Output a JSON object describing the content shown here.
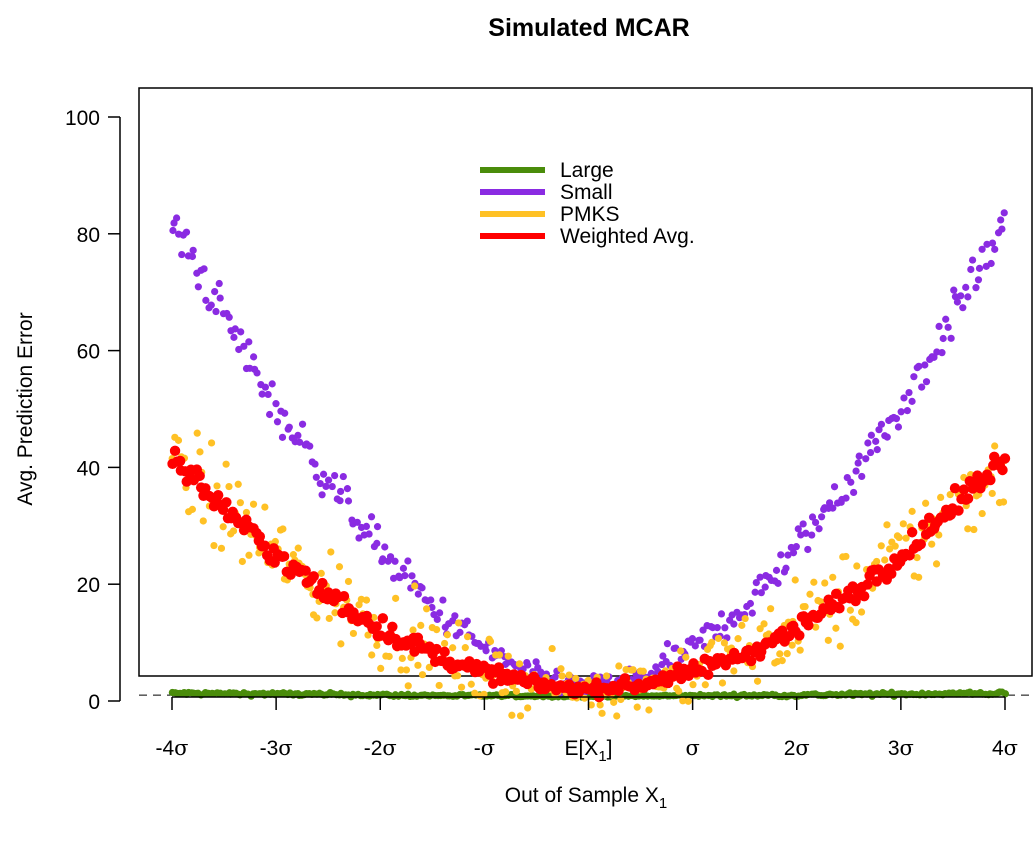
{
  "chart_data": {
    "type": "scatter",
    "title": "Simulated MCAR",
    "xlabel": "Out of Sample X",
    "xlabel_sub": "1",
    "ylabel": "Avg. Prediction Error",
    "xlim": [
      -4,
      4
    ],
    "ylim": [
      0,
      100
    ],
    "x_ticks": [
      {
        "value": -4,
        "prefix": "-4",
        "sym": "σ"
      },
      {
        "value": -3,
        "prefix": "-3",
        "sym": "σ"
      },
      {
        "value": -2,
        "prefix": "-2",
        "sym": "σ"
      },
      {
        "value": -1,
        "prefix": "-",
        "sym": "σ"
      },
      {
        "value": 0,
        "prefix": "E[X",
        "sub": "1",
        "suffix": "]"
      },
      {
        "value": 1,
        "prefix": "",
        "sym": "σ"
      },
      {
        "value": 2,
        "prefix": "2",
        "sym": "σ"
      },
      {
        "value": 3,
        "prefix": "3",
        "sym": "σ"
      },
      {
        "value": 4,
        "prefix": "4",
        "sym": "σ"
      }
    ],
    "y_ticks": [
      "0",
      "20",
      "40",
      "60",
      "80",
      "100"
    ],
    "reference_line_y": 1,
    "legend_position": "top-center",
    "series": [
      {
        "name": "Large",
        "color": "#4a8c0b",
        "x": [
          -4,
          -3,
          -2,
          -1,
          0,
          1,
          2,
          3,
          4
        ],
        "y": [
          1.3,
          1.2,
          1.0,
          0.9,
          0.8,
          0.9,
          1.0,
          1.2,
          1.3
        ],
        "spread": 0.15
      },
      {
        "name": "Small",
        "color": "#8a2be2",
        "x": [
          -4,
          -3.5,
          -3,
          -2.5,
          -2,
          -1.5,
          -1,
          -0.5,
          0,
          0.5,
          1,
          1.5,
          2,
          2.5,
          3,
          3.5,
          4
        ],
        "y": [
          82,
          66,
          50,
          38,
          26,
          16,
          9,
          4,
          2.5,
          4,
          9,
          16,
          26,
          38,
          50,
          66,
          82
        ],
        "spread": 1.8
      },
      {
        "name": "PMKS",
        "color": "#ffc125",
        "x": [
          -4,
          -3.5,
          -3,
          -2.5,
          -2,
          -1.5,
          -1,
          -0.5,
          0,
          0.5,
          1,
          1.5,
          2,
          2.5,
          3,
          3.5,
          4
        ],
        "y": [
          41,
          33,
          25,
          18,
          13,
          8.5,
          5,
          3,
          2,
          3,
          5,
          8.5,
          13,
          18,
          25,
          33,
          41
        ],
        "spread": 4.0
      },
      {
        "name": "Weighted Avg.",
        "color": "#ff0000",
        "x": [
          -4,
          -3.5,
          -3,
          -2.5,
          -2,
          -1.5,
          -1,
          -0.5,
          0,
          0.5,
          1,
          1.5,
          2,
          2.5,
          3,
          3.5,
          4
        ],
        "y": [
          42,
          33,
          25,
          18,
          12.5,
          8,
          5,
          2.8,
          1.9,
          2.8,
          5,
          8,
          12.5,
          18,
          25,
          33,
          42
        ],
        "spread": 1.0
      }
    ]
  }
}
